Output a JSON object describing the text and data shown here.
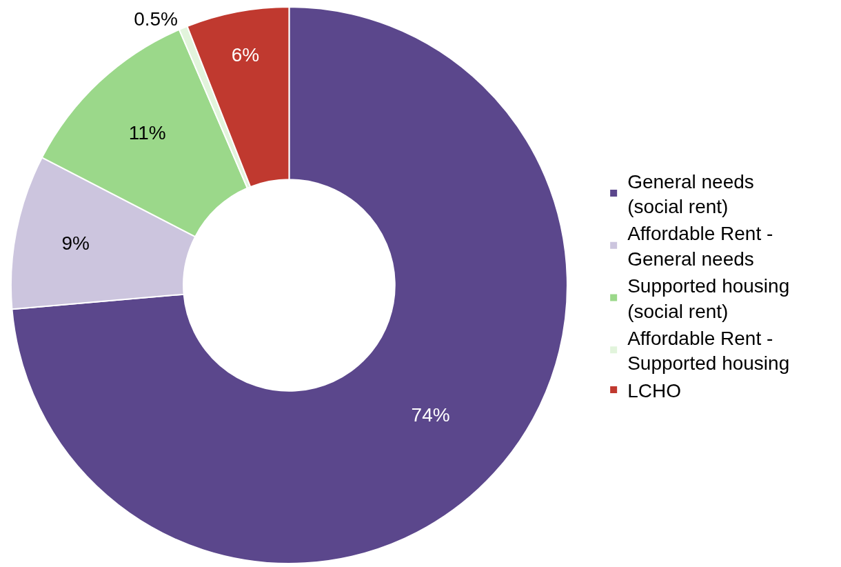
{
  "chart_data": {
    "type": "donut",
    "categories": [
      "General needs (social rent)",
      "Affordable Rent - General needs",
      "Supported housing (social rent)",
      "Affordable Rent - Supported housing",
      "LCHO"
    ],
    "values": [
      74,
      9,
      11,
      0.5,
      6
    ],
    "value_labels": [
      "74%",
      "9%",
      "11%",
      "0.5%",
      "6%"
    ],
    "colors": [
      "#5b478c",
      "#ccc5de",
      "#9bd88a",
      "#e2f4dc",
      "#c0392f"
    ],
    "legend": "right"
  }
}
